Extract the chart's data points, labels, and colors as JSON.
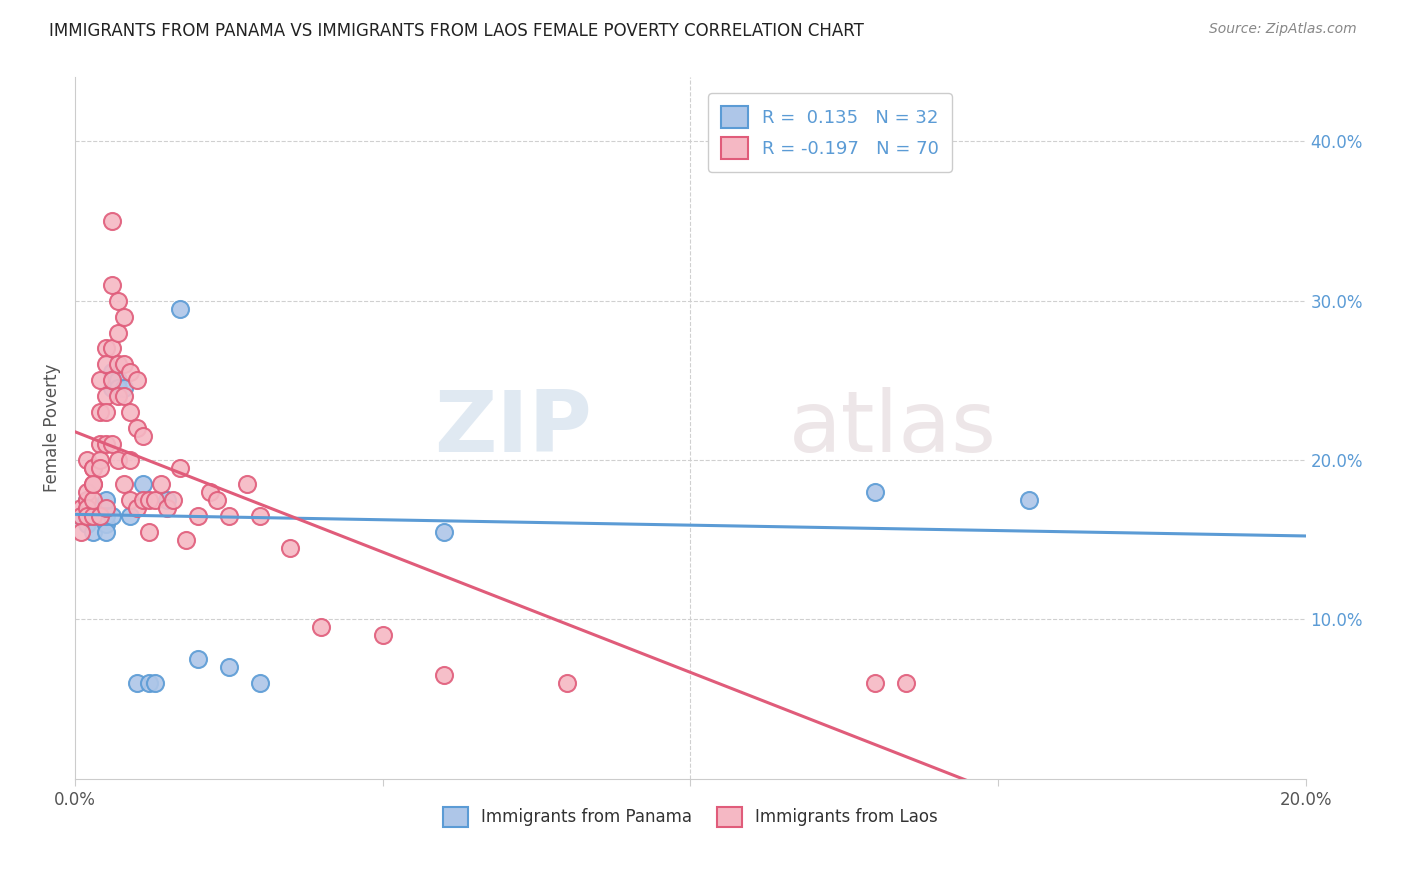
{
  "title": "IMMIGRANTS FROM PANAMA VS IMMIGRANTS FROM LAOS FEMALE POVERTY CORRELATION CHART",
  "source": "Source: ZipAtlas.com",
  "ylabel": "Female Poverty",
  "right_yticks": [
    "40.0%",
    "30.0%",
    "20.0%",
    "10.0%"
  ],
  "right_ytick_vals": [
    0.4,
    0.3,
    0.2,
    0.1
  ],
  "xlim": [
    0.0,
    0.2
  ],
  "ylim": [
    0.0,
    0.44
  ],
  "panama_color": "#aec6e8",
  "laos_color": "#f5b8c4",
  "panama_line_color": "#5b9bd5",
  "laos_line_color": "#e05c7a",
  "watermark_zip": "ZIP",
  "watermark_atlas": "atlas",
  "panama_scatter_x": [
    0.001,
    0.002,
    0.002,
    0.003,
    0.003,
    0.003,
    0.004,
    0.004,
    0.004,
    0.005,
    0.005,
    0.005,
    0.005,
    0.006,
    0.006,
    0.006,
    0.007,
    0.007,
    0.008,
    0.009,
    0.01,
    0.011,
    0.012,
    0.013,
    0.015,
    0.017,
    0.02,
    0.025,
    0.03,
    0.06,
    0.13,
    0.155
  ],
  "panama_scatter_y": [
    0.165,
    0.175,
    0.16,
    0.17,
    0.165,
    0.155,
    0.17,
    0.17,
    0.165,
    0.16,
    0.175,
    0.155,
    0.165,
    0.245,
    0.255,
    0.165,
    0.25,
    0.245,
    0.245,
    0.165,
    0.06,
    0.185,
    0.06,
    0.06,
    0.175,
    0.295,
    0.075,
    0.07,
    0.06,
    0.155,
    0.18,
    0.175
  ],
  "laos_scatter_x": [
    0.001,
    0.001,
    0.001,
    0.002,
    0.002,
    0.002,
    0.002,
    0.002,
    0.003,
    0.003,
    0.003,
    0.003,
    0.003,
    0.003,
    0.004,
    0.004,
    0.004,
    0.004,
    0.004,
    0.004,
    0.005,
    0.005,
    0.005,
    0.005,
    0.005,
    0.005,
    0.006,
    0.006,
    0.006,
    0.006,
    0.006,
    0.007,
    0.007,
    0.007,
    0.007,
    0.007,
    0.008,
    0.008,
    0.008,
    0.008,
    0.009,
    0.009,
    0.009,
    0.009,
    0.01,
    0.01,
    0.01,
    0.011,
    0.011,
    0.012,
    0.012,
    0.013,
    0.014,
    0.015,
    0.016,
    0.017,
    0.018,
    0.02,
    0.022,
    0.023,
    0.025,
    0.028,
    0.03,
    0.035,
    0.04,
    0.05,
    0.06,
    0.08,
    0.13,
    0.135
  ],
  "laos_scatter_y": [
    0.17,
    0.165,
    0.155,
    0.175,
    0.18,
    0.17,
    0.2,
    0.165,
    0.195,
    0.185,
    0.195,
    0.165,
    0.175,
    0.185,
    0.25,
    0.23,
    0.21,
    0.2,
    0.195,
    0.165,
    0.27,
    0.26,
    0.24,
    0.23,
    0.21,
    0.17,
    0.35,
    0.31,
    0.27,
    0.25,
    0.21,
    0.3,
    0.28,
    0.26,
    0.24,
    0.2,
    0.29,
    0.26,
    0.24,
    0.185,
    0.255,
    0.23,
    0.2,
    0.175,
    0.25,
    0.22,
    0.17,
    0.215,
    0.175,
    0.175,
    0.155,
    0.175,
    0.185,
    0.17,
    0.175,
    0.195,
    0.15,
    0.165,
    0.18,
    0.175,
    0.165,
    0.185,
    0.165,
    0.145,
    0.095,
    0.09,
    0.065,
    0.06,
    0.06,
    0.06
  ]
}
